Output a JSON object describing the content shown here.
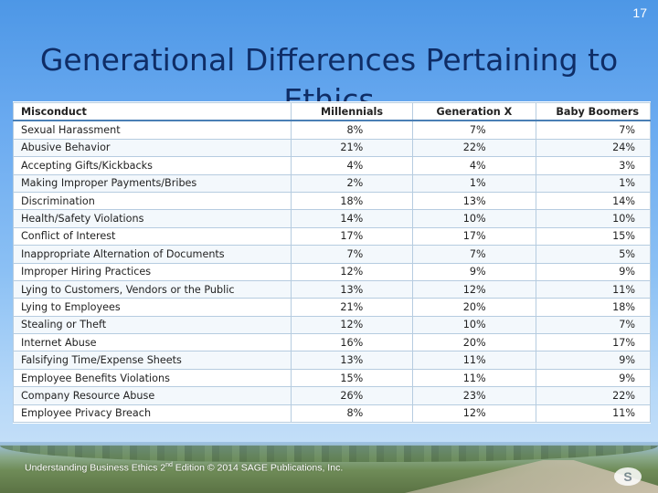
{
  "slide": {
    "number": "17"
  },
  "title": "Generational Differences Pertaining to Ethics",
  "table": {
    "headers": [
      "Misconduct",
      "Millennials",
      "Generation X",
      "Baby Boomers"
    ],
    "rows": [
      [
        "Sexual Harassment",
        "8%",
        "7%",
        "7%"
      ],
      [
        "Abusive Behavior",
        "21%",
        "22%",
        "24%"
      ],
      [
        "Accepting Gifts/Kickbacks",
        "4%",
        "4%",
        "3%"
      ],
      [
        "Making Improper Payments/Bribes",
        "2%",
        "1%",
        "1%"
      ],
      [
        "Discrimination",
        "18%",
        "13%",
        "14%"
      ],
      [
        "Health/Safety Violations",
        "14%",
        "10%",
        "10%"
      ],
      [
        "Conflict of Interest",
        "17%",
        "17%",
        "15%"
      ],
      [
        "Inappropriate Alternation of Documents",
        "7%",
        "7%",
        "5%"
      ],
      [
        "Improper Hiring Practices",
        "12%",
        "9%",
        "9%"
      ],
      [
        "Lying to Customers, Vendors or the Public",
        "13%",
        "12%",
        "11%"
      ],
      [
        "Lying to Employees",
        "21%",
        "20%",
        "18%"
      ],
      [
        "Stealing or Theft",
        "12%",
        "10%",
        "7%"
      ],
      [
        "Internet Abuse",
        "16%",
        "20%",
        "17%"
      ],
      [
        "Falsifying Time/Expense Sheets",
        "13%",
        "11%",
        "9%"
      ],
      [
        "Employee Benefits Violations",
        "15%",
        "11%",
        "9%"
      ],
      [
        "Company Resource Abuse",
        "26%",
        "23%",
        "22%"
      ],
      [
        "Employee Privacy Breach",
        "8%",
        "12%",
        "11%"
      ]
    ]
  },
  "footer": {
    "text_before_sup": "Understanding Business Ethics 2",
    "sup": "nd",
    "text_after_sup": " Edition © 2014 SAGE Publications, Inc."
  },
  "logo": {
    "icon": "sage-logo-icon",
    "glyph": "S"
  }
}
